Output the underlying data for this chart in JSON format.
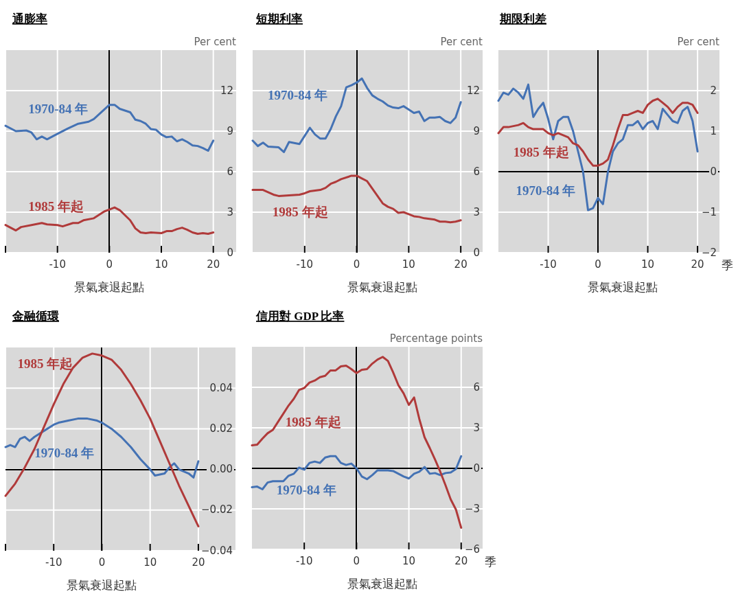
{
  "chart_data": [
    {
      "type": "line",
      "title": "通膨率",
      "xlabel": "景氣衰退起點",
      "ylabel": "Per cent",
      "xlim": [
        -20,
        24.4
      ],
      "ylim": [
        0,
        15
      ],
      "xticks": [
        {
          "value": -20,
          "label": null
        },
        -10,
        0,
        10,
        20
      ],
      "yticks": [
        0,
        3,
        6,
        9,
        12
      ],
      "grid": true,
      "line_style": "solid",
      "marker": "none",
      "legend": false,
      "ref_lines": [
        {
          "axis": "x",
          "value": 0,
          "color": "#000000"
        }
      ],
      "series": [
        {
          "name": "1970-84 年",
          "color": "#4472b4",
          "x": [
            -20,
            -18,
            -16,
            -15,
            -14,
            -13,
            -12,
            -10,
            -8,
            -6,
            -4,
            -3,
            0,
            1,
            2,
            4,
            5,
            6,
            7,
            8,
            9,
            10,
            11,
            12,
            13,
            14,
            15,
            16,
            17,
            18,
            19,
            20
          ],
          "values": [
            9.4,
            9.0,
            9.05,
            8.9,
            8.4,
            8.6,
            8.4,
            8.8,
            9.2,
            9.55,
            9.7,
            9.9,
            10.95,
            10.95,
            10.65,
            10.4,
            9.85,
            9.75,
            9.55,
            9.15,
            9.1,
            8.75,
            8.55,
            8.6,
            8.25,
            8.4,
            8.2,
            7.95,
            7.9,
            7.75,
            7.55,
            8.3
          ]
        },
        {
          "name": "1985 年起",
          "color": "#b03a3a",
          "x": [
            -20,
            -18,
            -17,
            -15,
            -13,
            -12,
            -10,
            -9,
            -7,
            -6,
            -5,
            -3,
            -1,
            0,
            1,
            2,
            4,
            5,
            6,
            7,
            8,
            10,
            11,
            12,
            13,
            14,
            15,
            16,
            17,
            18,
            19,
            20
          ],
          "values": [
            2.05,
            1.65,
            1.9,
            2.05,
            2.2,
            2.1,
            2.05,
            1.95,
            2.2,
            2.2,
            2.4,
            2.55,
            3.05,
            3.2,
            3.35,
            3.15,
            2.4,
            1.8,
            1.5,
            1.45,
            1.5,
            1.45,
            1.6,
            1.6,
            1.75,
            1.85,
            1.7,
            1.5,
            1.4,
            1.45,
            1.4,
            1.5
          ]
        }
      ]
    },
    {
      "type": "line",
      "title": "短期利率",
      "xlabel": "景氣衰退起點",
      "ylabel": "Per cent",
      "xlim": [
        -20,
        24.2
      ],
      "ylim": [
        0,
        15
      ],
      "xticks": [
        -10,
        0,
        10,
        20
      ],
      "yticks": [
        0,
        3,
        6,
        9,
        12
      ],
      "grid": true,
      "line_style": "solid",
      "marker": "none",
      "legend": false,
      "ref_lines": [
        {
          "axis": "x",
          "value": 0,
          "color": "#000000"
        }
      ],
      "series": [
        {
          "name": "1970-84 年",
          "color": "#4472b4",
          "x": [
            -20,
            -19,
            -18,
            -17,
            -15,
            -14,
            -13,
            -11,
            -10,
            -9,
            -8,
            -7,
            -6,
            -5,
            -4,
            -3,
            -2,
            -1,
            0,
            1,
            2,
            3,
            4,
            5,
            6,
            7,
            8,
            9,
            10,
            11,
            12,
            13,
            14,
            15,
            16,
            17,
            18,
            19,
            20
          ],
          "values": [
            8.3,
            7.9,
            8.15,
            7.85,
            7.8,
            7.45,
            8.2,
            8.05,
            8.65,
            9.25,
            8.75,
            8.45,
            8.45,
            9.15,
            10.1,
            10.85,
            12.25,
            12.4,
            12.6,
            12.9,
            12.2,
            11.65,
            11.4,
            11.2,
            10.9,
            10.75,
            10.7,
            10.85,
            10.6,
            10.35,
            10.45,
            9.75,
            10.0,
            10.0,
            10.05,
            9.75,
            9.6,
            10.0,
            11.15
          ]
        },
        {
          "name": "1985 年起",
          "color": "#b03a3a",
          "x": [
            -20,
            -18,
            -16,
            -15,
            -13,
            -11,
            -10,
            -9,
            -7,
            -6,
            -5,
            -4,
            -3,
            -1,
            0,
            1,
            2,
            3,
            4,
            5,
            6,
            7,
            8,
            9,
            10,
            11,
            12,
            13,
            14,
            15,
            16,
            17,
            18,
            19,
            20
          ],
          "values": [
            4.65,
            4.65,
            4.3,
            4.2,
            4.25,
            4.3,
            4.4,
            4.55,
            4.65,
            4.8,
            5.1,
            5.25,
            5.45,
            5.7,
            5.7,
            5.5,
            5.3,
            4.75,
            4.2,
            3.65,
            3.4,
            3.25,
            2.95,
            3.0,
            2.85,
            2.7,
            2.65,
            2.55,
            2.5,
            2.45,
            2.3,
            2.3,
            2.25,
            2.3,
            2.4
          ]
        }
      ]
    },
    {
      "type": "line",
      "title": "期限利差",
      "xlabel": "景氣衰退起點",
      "ylabel": "Per cent",
      "xlim": [
        -20,
        24.4
      ],
      "ylim": [
        -2,
        3
      ],
      "xticks": [
        -10,
        0,
        10,
        20
      ],
      "yticks": [
        {
          "value": -2,
          "label": "−2"
        },
        {
          "value": -1,
          "label": "−1"
        },
        0,
        1,
        2
      ],
      "grid": true,
      "line_style": "solid",
      "marker": "none",
      "legend": false,
      "annotations": [
        "季"
      ],
      "series": [
        {
          "name": "1970-84 年",
          "color": "#4472b4",
          "x": [
            -20,
            -19,
            -18,
            -17,
            -16,
            -15,
            -14,
            -13,
            -12,
            -11,
            -10,
            -9,
            -8,
            -7,
            -6,
            -5,
            -4,
            -3,
            -2,
            -1,
            0,
            1,
            2,
            3,
            4,
            5,
            6,
            7,
            8,
            9,
            10,
            11,
            12,
            13,
            14,
            15,
            16,
            17,
            18,
            19,
            20
          ],
          "values": [
            1.75,
            1.95,
            1.9,
            2.05,
            1.95,
            1.8,
            2.15,
            1.35,
            1.55,
            1.7,
            1.3,
            0.8,
            1.25,
            1.35,
            1.35,
            1.0,
            0.5,
            0.0,
            -0.95,
            -0.9,
            -0.65,
            -0.8,
            0.0,
            0.5,
            0.7,
            0.8,
            1.15,
            1.15,
            1.25,
            1.05,
            1.2,
            1.25,
            1.05,
            1.55,
            1.4,
            1.25,
            1.2,
            1.5,
            1.6,
            1.25,
            0.5
          ]
        },
        {
          "name": "1985 年起",
          "color": "#b03a3a",
          "x": [
            -20,
            -19,
            -18,
            -16,
            -15,
            -14,
            -13,
            -12,
            -11,
            -10,
            -9,
            -8,
            -7,
            -6,
            -5,
            -4,
            -3,
            -2,
            -1,
            0,
            1,
            2,
            3,
            4,
            5,
            6,
            7,
            8,
            9,
            10,
            11,
            12,
            13,
            14,
            15,
            16,
            17,
            18,
            19,
            20
          ],
          "values": [
            0.95,
            1.1,
            1.1,
            1.15,
            1.2,
            1.1,
            1.05,
            1.05,
            1.05,
            0.95,
            0.9,
            0.95,
            0.9,
            0.85,
            0.7,
            0.65,
            0.5,
            0.3,
            0.15,
            0.15,
            0.2,
            0.3,
            0.65,
            1.05,
            1.4,
            1.4,
            1.45,
            1.5,
            1.45,
            1.65,
            1.75,
            1.8,
            1.7,
            1.6,
            1.45,
            1.6,
            1.7,
            1.7,
            1.65,
            1.45
          ]
        }
      ]
    },
    {
      "type": "line",
      "title": "金融循環",
      "xlabel": "景氣衰退起點",
      "xlim": [
        -20,
        27.7
      ],
      "ylim": [
        -0.04,
        0.06
      ],
      "xticks": [
        {
          "value": -20,
          "label": null
        },
        -10,
        0,
        10,
        20
      ],
      "yticks": [
        {
          "value": -0.04,
          "label": "−0.04"
        },
        {
          "value": -0.02,
          "label": "−0.02"
        },
        {
          "value": 0,
          "label": "0.00"
        },
        {
          "value": 0.02,
          "label": "0.02"
        },
        {
          "value": 0.04,
          "label": "0.04"
        }
      ],
      "grid": true,
      "line_style": "solid",
      "marker": "none",
      "legend": false,
      "series": [
        {
          "name": "1970-84 年",
          "color": "#4472b4",
          "x": [
            -20,
            -19,
            -18,
            -17,
            -16,
            -15,
            -14,
            -12,
            -10,
            -9,
            -7,
            -5,
            -3,
            -1,
            0,
            2,
            4,
            6,
            8,
            10,
            11,
            13,
            14,
            15,
            16,
            17,
            18,
            19,
            20
          ],
          "values": [
            0.011,
            0.012,
            0.011,
            0.015,
            0.016,
            0.014,
            0.016,
            0.019,
            0.022,
            0.023,
            0.024,
            0.025,
            0.025,
            0.024,
            0.023,
            0.02,
            0.016,
            0.011,
            0.005,
            0.0,
            -0.003,
            -0.002,
            0.001,
            0.003,
            0.0,
            -0.001,
            -0.002,
            -0.004,
            0.004
          ]
        },
        {
          "name": "1985 年起",
          "color": "#b03a3a",
          "x": [
            -20,
            -18,
            -16,
            -14,
            -12,
            -10,
            -8,
            -6,
            -4,
            -2,
            0,
            2,
            4,
            6,
            8,
            10,
            12,
            14,
            16,
            18,
            20
          ],
          "values": [
            -0.013,
            -0.007,
            0.001,
            0.01,
            0.021,
            0.032,
            0.042,
            0.05,
            0.055,
            0.057,
            0.056,
            0.054,
            0.049,
            0.042,
            0.034,
            0.025,
            0.014,
            0.003,
            -0.008,
            -0.018,
            -0.028
          ]
        }
      ]
    },
    {
      "type": "line",
      "title": "信用對 GDP 比率",
      "xlabel": "景氣衰退起點",
      "ylabel": "Percentage points",
      "xlim": [
        -20,
        24.1
      ],
      "ylim": [
        -6,
        9
      ],
      "xticks": [
        -10,
        0,
        10,
        20
      ],
      "yticks": [
        {
          "value": -6,
          "label": "−6"
        },
        {
          "value": -3,
          "label": "−3"
        },
        0,
        3,
        6
      ],
      "grid": true,
      "line_style": "solid",
      "marker": "none",
      "legend": false,
      "annotations": [
        "季"
      ],
      "series": [
        {
          "name": "1970-84 年",
          "color": "#4472b4",
          "x": [
            -20,
            -19,
            -18,
            -17,
            -16,
            -15,
            -14,
            -13,
            -12,
            -11,
            -10,
            -9,
            -8,
            -7,
            -6,
            -5,
            -4,
            -3,
            -2,
            -1,
            0,
            1,
            2,
            3,
            4,
            5,
            6,
            7,
            8,
            9,
            10,
            11,
            12,
            13,
            14,
            15,
            16,
            17,
            18,
            19,
            20
          ],
          "values": [
            -1.4,
            -1.35,
            -1.55,
            -1.05,
            -0.95,
            -0.95,
            -0.95,
            -0.55,
            -0.4,
            0.05,
            -0.1,
            0.4,
            0.5,
            0.4,
            0.8,
            0.9,
            0.9,
            0.4,
            0.25,
            0.35,
            0.0,
            -0.6,
            -0.8,
            -0.5,
            -0.15,
            -0.15,
            -0.15,
            -0.2,
            -0.4,
            -0.6,
            -0.75,
            -0.4,
            -0.25,
            0.1,
            -0.4,
            -0.35,
            -0.5,
            -0.35,
            -0.3,
            -0.05,
            0.9
          ]
        },
        {
          "name": "1985 年起",
          "color": "#b03a3a",
          "x": [
            -20,
            -19,
            -18,
            -17,
            -16,
            -15,
            -14,
            -13,
            -12,
            -11,
            -10,
            -9,
            -8,
            -7,
            -6,
            -5,
            -4,
            -3,
            -2,
            -1,
            0,
            1,
            2,
            3,
            4,
            5,
            6,
            7,
            8,
            9,
            10,
            11,
            12,
            13,
            14,
            15,
            16,
            17,
            18,
            19,
            20
          ],
          "values": [
            1.7,
            1.75,
            2.2,
            2.6,
            2.85,
            3.45,
            4.05,
            4.65,
            5.15,
            5.8,
            5.95,
            6.35,
            6.5,
            6.75,
            6.85,
            7.25,
            7.25,
            7.55,
            7.6,
            7.35,
            7.05,
            7.3,
            7.35,
            7.75,
            8.05,
            8.25,
            7.95,
            7.1,
            6.15,
            5.55,
            4.7,
            5.25,
            3.65,
            2.3,
            1.5,
            0.65,
            -0.25,
            -1.25,
            -2.3,
            -3.05,
            -4.4
          ]
        }
      ]
    }
  ]
}
